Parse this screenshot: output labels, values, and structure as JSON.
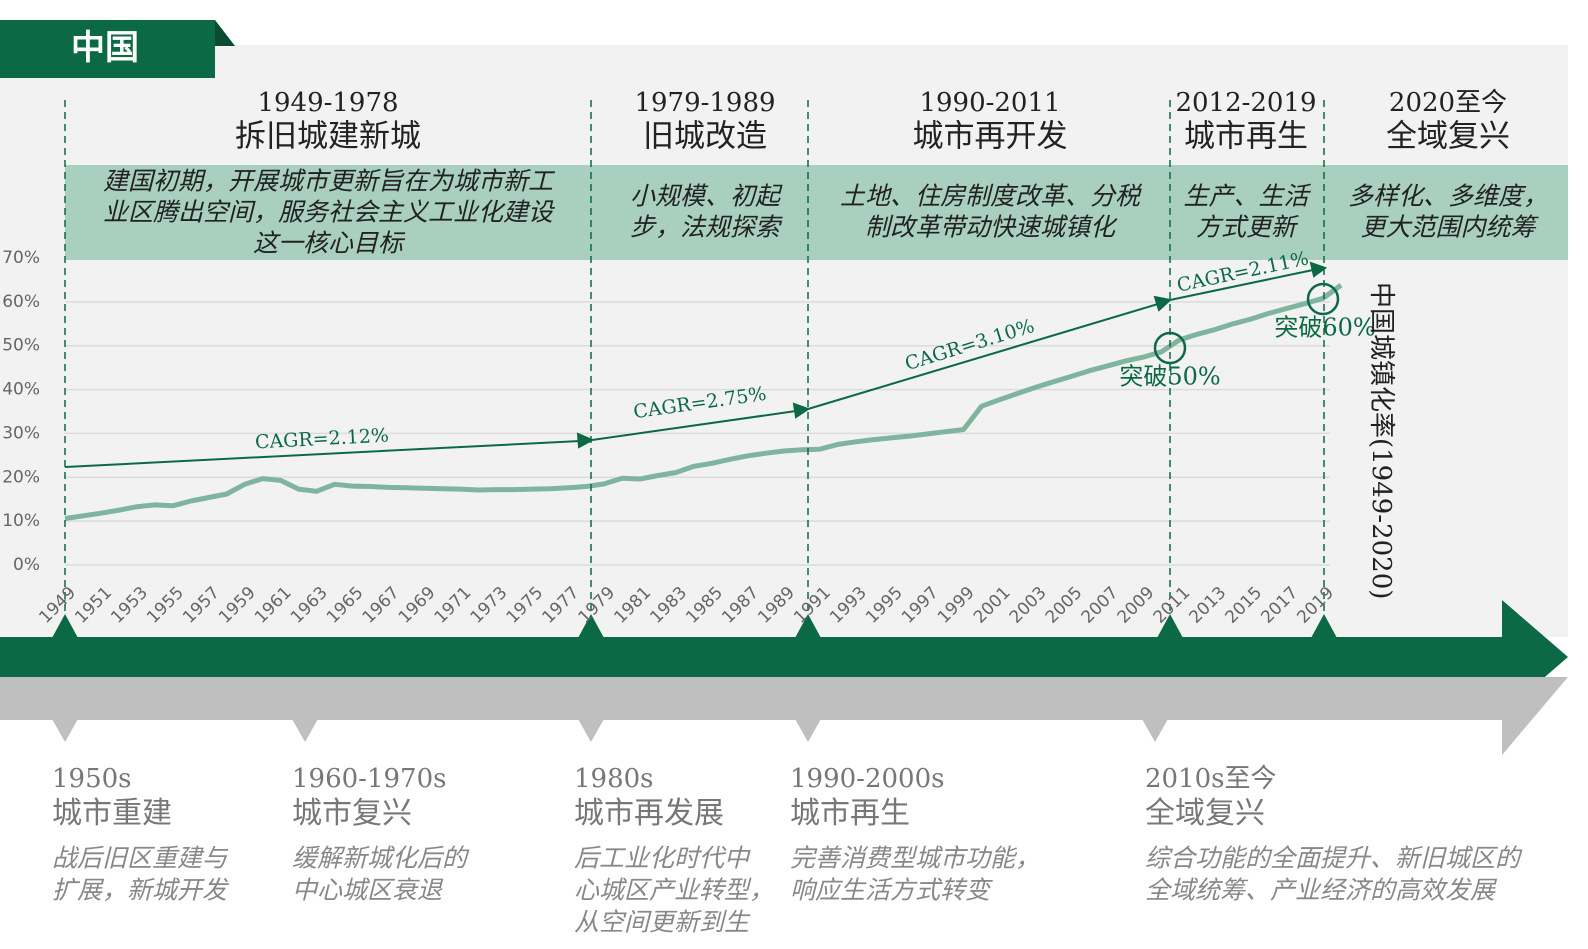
{
  "header": {
    "title": "中国"
  },
  "periods": [
    {
      "years": "1949-1978",
      "title": "拆旧城建新城",
      "description": [
        "建国初期，开展城市更新旨在为城市新工",
        "业区腾出空间，服务社会主义工业化建设",
        "这一核心目标"
      ]
    },
    {
      "years": "1979-1989",
      "title": "旧城改造",
      "description": [
        "小规模、初起",
        "步，法规探索"
      ]
    },
    {
      "years": "1990-2011",
      "title": "城市再开发",
      "description": [
        "土地、住房制度改革、分税",
        "制改革带动快速城镇化"
      ]
    },
    {
      "years": "2012-2019",
      "title": "城市再生",
      "description": [
        "生产、生活",
        "方式更新"
      ]
    },
    {
      "years": "2020至今",
      "title": "全域复兴",
      "description": [
        "多样化、多维度，",
        "更大范围内统筹"
      ]
    }
  ],
  "chart_data": {
    "type": "line",
    "x": [
      1949,
      1950,
      1951,
      1952,
      1953,
      1954,
      1955,
      1956,
      1957,
      1958,
      1959,
      1960,
      1961,
      1962,
      1963,
      1964,
      1965,
      1966,
      1967,
      1968,
      1969,
      1970,
      1971,
      1972,
      1973,
      1974,
      1975,
      1976,
      1977,
      1978,
      1979,
      1980,
      1981,
      1982,
      1983,
      1984,
      1985,
      1986,
      1987,
      1988,
      1989,
      1990,
      1991,
      1992,
      1993,
      1994,
      1995,
      1996,
      1997,
      1998,
      1999,
      2000,
      2001,
      2002,
      2003,
      2004,
      2005,
      2006,
      2007,
      2008,
      2009,
      2010,
      2011,
      2012,
      2013,
      2014,
      2015,
      2016,
      2017,
      2018,
      2019,
      2020
    ],
    "series": [
      {
        "name": "中国城镇化率(1949-2020)",
        "color": "#7fb49f",
        "values": [
          10.6,
          11.2,
          11.8,
          12.5,
          13.3,
          13.7,
          13.5,
          14.6,
          15.4,
          16.2,
          18.4,
          19.7,
          19.3,
          17.3,
          16.8,
          18.4,
          18.0,
          17.9,
          17.7,
          17.6,
          17.5,
          17.4,
          17.3,
          17.1,
          17.2,
          17.2,
          17.3,
          17.4,
          17.6,
          17.9,
          18.5,
          19.8,
          19.6,
          20.4,
          21.1,
          22.5,
          23.2,
          24.1,
          24.9,
          25.5,
          26.0,
          26.3,
          26.4,
          27.5,
          28.1,
          28.6,
          29.0,
          29.4,
          29.9,
          30.4,
          30.9,
          36.2,
          37.7,
          39.1,
          40.5,
          41.8,
          43.0,
          44.3,
          45.4,
          46.5,
          47.4,
          48.6,
          51.3,
          52.6,
          53.7,
          55.0,
          56.1,
          57.4,
          58.5,
          59.6,
          60.8,
          63.8
        ]
      }
    ],
    "xlim": [
      1949,
      2020
    ],
    "xticks": [
      1949,
      1951,
      1953,
      1955,
      1957,
      1959,
      1961,
      1963,
      1965,
      1967,
      1969,
      1971,
      1973,
      1975,
      1977,
      1979,
      1981,
      1983,
      1985,
      1987,
      1989,
      1991,
      1993,
      1995,
      1997,
      1999,
      2001,
      2003,
      2005,
      2007,
      2009,
      2011,
      2013,
      2015,
      2017,
      2019
    ],
    "ylim": [
      0,
      70
    ],
    "yticks": [
      {
        "value": 0,
        "label": "0%"
      },
      {
        "value": 10,
        "label": "10%"
      },
      {
        "value": 20,
        "label": "20%"
      },
      {
        "value": 30,
        "label": "30%"
      },
      {
        "value": 40,
        "label": "40%"
      },
      {
        "value": 50,
        "label": "50%"
      },
      {
        "value": 60,
        "label": "60%"
      },
      {
        "value": 70,
        "label": "70%"
      }
    ],
    "grid": true,
    "annotations": [
      {
        "text": "CAGR=2.12%"
      },
      {
        "text": "CAGR=2.75%"
      },
      {
        "text": "CAGR=3.10%"
      },
      {
        "text": "CAGR=2.11%"
      },
      {
        "text": "突破50%"
      },
      {
        "text": "突破60%"
      }
    ]
  },
  "phases": [
    {
      "period": "1950s",
      "title": "城市重建",
      "description": [
        "战后旧区重建与",
        "扩展，新城开发"
      ]
    },
    {
      "period": "1960-1970s",
      "title": "城市复兴",
      "description": [
        "缓解新城化后的",
        "中心城区衰退"
      ]
    },
    {
      "period": "1980s",
      "title": "城市再发展",
      "description": [
        "后工业化时代中",
        "心城区产业转型，",
        "从空间更新到生"
      ]
    },
    {
      "period": "1990-2000s",
      "title": "城市再生",
      "description": [
        "完善消费型城市功能，",
        "响应生活方式转变"
      ]
    },
    {
      "period": "2010s至今",
      "title": "全域复兴",
      "description": [
        "综合功能的全面提升、新旧城区的",
        "全域统筹、产业经济的高效发展"
      ]
    }
  ]
}
